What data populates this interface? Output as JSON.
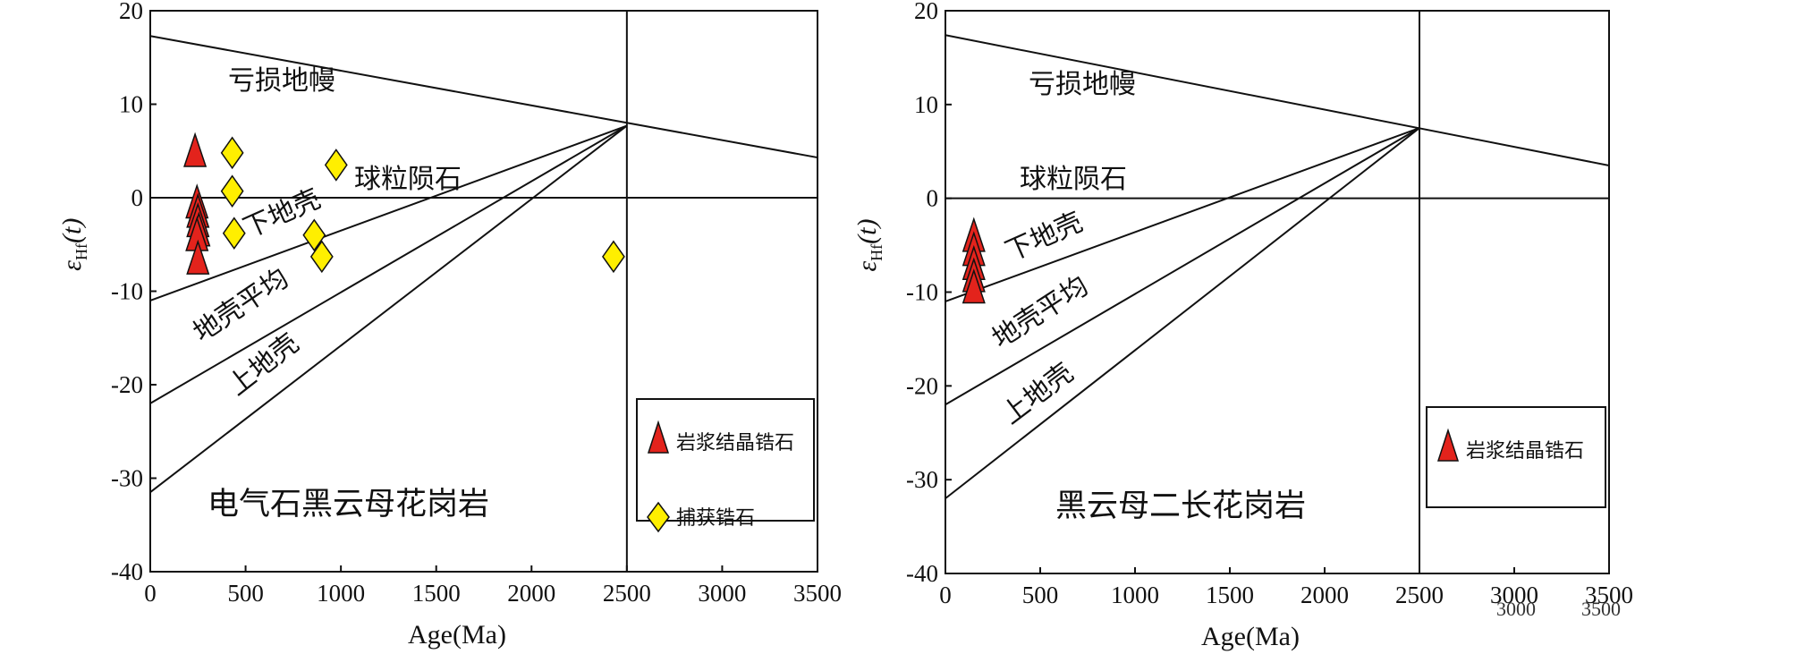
{
  "chart_data": [
    {
      "type": "scatter",
      "panel_label": "电气石黑云母花岗岩",
      "xlabel": "Age(Ma)",
      "ylabel_main": "ε",
      "ylabel_sub": "Hf",
      "ylabel_tail": "(t)",
      "xlim": [
        0,
        3500
      ],
      "ylim": [
        -40,
        20
      ],
      "xticks": [
        0,
        500,
        1000,
        1500,
        2000,
        2500,
        3000,
        3500
      ],
      "yticks": [
        -40,
        -30,
        -20,
        -10,
        0,
        10,
        20
      ],
      "grid": false,
      "reference_lines": [
        {
          "name": "亏损地幔",
          "points": [
            [
              0,
              17.3
            ],
            [
              3500,
              4.3
            ]
          ]
        },
        {
          "name": "球粒陨石",
          "points": [
            [
              0,
              0
            ],
            [
              3500,
              0
            ]
          ]
        },
        {
          "name": "下地壳",
          "points": [
            [
              0,
              -11
            ],
            [
              2500,
              7.7
            ]
          ]
        },
        {
          "name": "地壳平均",
          "points": [
            [
              0,
              -22
            ],
            [
              2500,
              7.7
            ]
          ]
        },
        {
          "name": "上地壳",
          "points": [
            [
              0,
              -31.5
            ],
            [
              2500,
              7.7
            ]
          ]
        },
        {
          "name": "",
          "points": [
            [
              2500,
              -40
            ],
            [
              2500,
              20
            ]
          ]
        }
      ],
      "region_labels": [
        "亏损地幔",
        "球粒陨石",
        "下地壳",
        "地壳平均",
        "上地壳"
      ],
      "series": [
        {
          "name": "岩浆结晶锆石",
          "marker": "triangle",
          "color": "#e3231c",
          "x": [
            235,
            245,
            250,
            250,
            255,
            245,
            250
          ],
          "y": [
            4.5,
            -1.0,
            -2.0,
            -3.0,
            -4.0,
            -4.5,
            -7.0
          ]
        },
        {
          "name": "捕获锆石",
          "marker": "diamond",
          "color": "#ffef00",
          "x": [
            430,
            430,
            440,
            860,
            900,
            975,
            2430
          ],
          "y": [
            4.8,
            0.7,
            -3.8,
            -4.0,
            -6.3,
            3.5,
            -6.3
          ]
        }
      ],
      "legend": {
        "placement": "bottom-right",
        "entries": [
          "岩浆结晶锆石",
          "捕获锆石"
        ]
      }
    },
    {
      "type": "scatter",
      "panel_label": "黑云母二长花岗岩",
      "xlabel": "Age(Ma)",
      "ylabel_main": "ε",
      "ylabel_sub": "Hf",
      "ylabel_tail": "(t)",
      "xlim": [
        0,
        3500
      ],
      "ylim": [
        -40,
        20
      ],
      "xticks": [
        0,
        500,
        1000,
        1500,
        2000,
        2500,
        3000,
        3500
      ],
      "yticks": [
        -40,
        -30,
        -20,
        -10,
        0,
        10,
        20
      ],
      "grid": false,
      "reference_lines": [
        {
          "name": "亏损地幔",
          "points": [
            [
              0,
              17.4
            ],
            [
              3500,
              3.5
            ]
          ]
        },
        {
          "name": "球粒陨石",
          "points": [
            [
              0,
              0
            ],
            [
              3500,
              0
            ]
          ]
        },
        {
          "name": "下地壳",
          "points": [
            [
              0,
              -11
            ],
            [
              2500,
              7.5
            ]
          ]
        },
        {
          "name": "地壳平均",
          "points": [
            [
              0,
              -22
            ],
            [
              2500,
              7.5
            ]
          ]
        },
        {
          "name": "上地壳",
          "points": [
            [
              0,
              -32
            ],
            [
              2500,
              7.5
            ]
          ]
        },
        {
          "name": "",
          "points": [
            [
              2500,
              -40
            ],
            [
              2500,
              20
            ]
          ]
        }
      ],
      "region_labels": [
        "亏损地幔",
        "球粒陨石",
        "下地壳",
        "地壳平均",
        "上地壳"
      ],
      "series": [
        {
          "name": "岩浆结晶锆石",
          "marker": "triangle",
          "color": "#e3231c",
          "x": [
            150,
            150,
            150,
            150,
            150
          ],
          "y": [
            -4.5,
            -6.0,
            -7.5,
            -8.8,
            -10.0
          ]
        }
      ],
      "legend": {
        "placement": "bottom-right",
        "entries": [
          "岩浆结晶锆石"
        ]
      },
      "faint_text": [
        "3000",
        "3500"
      ]
    }
  ]
}
